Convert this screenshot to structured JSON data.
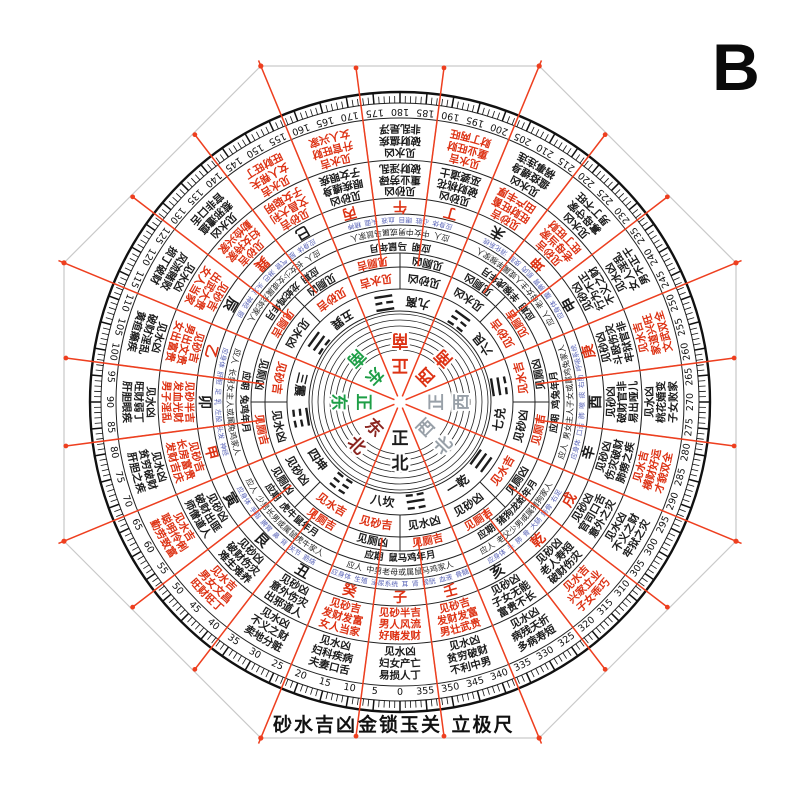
{
  "badge": "B",
  "footer": {
    "labels": [
      "砂水吉凶",
      "金锁玉关",
      "立极尺"
    ]
  },
  "palette": {
    "red": "#dd3214",
    "black": "#1c1c1c",
    "green": "#1d9e46",
    "maroon": "#8b2520",
    "gray": "#98a0a8",
    "blue": "#5a65b8",
    "line": "#222222",
    "ray": "#ee3f1f",
    "octagon": "#c9c9c9"
  },
  "center_directions": [
    {
      "label": "正北",
      "angle": 0,
      "color": "black"
    },
    {
      "label": "东北",
      "angle": 45,
      "color": "maroon"
    },
    {
      "label": "正东",
      "angle": 90,
      "color": "green"
    },
    {
      "label": "东南",
      "angle": 135,
      "color": "green"
    },
    {
      "label": "正南",
      "angle": 180,
      "color": "red"
    },
    {
      "label": "西南",
      "angle": 225,
      "color": "red"
    },
    {
      "label": "正西",
      "angle": 270,
      "color": "gray"
    },
    {
      "label": "西北",
      "angle": 315,
      "color": "gray"
    }
  ],
  "trigram_ring": [
    {
      "label": "八坎",
      "angle": 0,
      "lines": [
        0,
        1,
        0
      ]
    },
    {
      "label": "四坤",
      "angle": 45,
      "lines": [
        0,
        0,
        0
      ]
    },
    {
      "label": "三震",
      "angle": 90,
      "lines": [
        1,
        0,
        0
      ]
    },
    {
      "label": "五巽",
      "angle": 135,
      "lines": [
        0,
        1,
        1
      ]
    },
    {
      "label": "九离",
      "angle": 180,
      "lines": [
        1,
        0,
        1
      ]
    },
    {
      "label": "六艮",
      "angle": 225,
      "lines": [
        0,
        0,
        1
      ]
    },
    {
      "label": "七兑",
      "angle": 270,
      "lines": [
        1,
        1,
        0
      ]
    },
    {
      "label": "一乾",
      "angle": 315,
      "lines": [
        1,
        1,
        1
      ]
    }
  ],
  "verdict_ring": [
    {
      "text": "见砂吉",
      "angle": 11.25,
      "color": "red"
    },
    {
      "text": "见水凶",
      "angle": -11.25,
      "color": "black"
    },
    {
      "text": "见砂凶",
      "angle": 56.25,
      "color": "black"
    },
    {
      "text": "见水吉",
      "angle": 33.75,
      "color": "red"
    },
    {
      "text": "见砂吉",
      "angle": 101.25,
      "color": "red"
    },
    {
      "text": "见水凶",
      "angle": 78.75,
      "color": "black"
    },
    {
      "text": "见砂吉",
      "angle": 146.25,
      "color": "red"
    },
    {
      "text": "见水凶",
      "angle": 123.75,
      "color": "black"
    },
    {
      "text": "见砂凶",
      "angle": 191.25,
      "color": "black"
    },
    {
      "text": "见水吉",
      "angle": 168.75,
      "color": "red"
    },
    {
      "text": "见砂吉",
      "angle": 236.25,
      "color": "red"
    },
    {
      "text": "见水凶",
      "angle": 213.75,
      "color": "black"
    },
    {
      "text": "见砂凶",
      "angle": 281.25,
      "color": "black"
    },
    {
      "text": "见水吉",
      "angle": 258.75,
      "color": "red"
    },
    {
      "text": "见砂凶",
      "angle": 326.25,
      "color": "black"
    },
    {
      "text": "见水吉",
      "angle": 303.75,
      "color": "red"
    }
  ],
  "toilet_ring": [
    {
      "text": "见厕凶",
      "angle": 11.25,
      "color": "black"
    },
    {
      "text": "见厕吉",
      "angle": -11.25,
      "color": "red"
    },
    {
      "text": "见厕凶",
      "angle": 56.25,
      "color": "black"
    },
    {
      "text": "见厕吉",
      "angle": 33.75,
      "color": "red"
    },
    {
      "text": "见厕凶",
      "angle": 101.25,
      "color": "black"
    },
    {
      "text": "见厕吉",
      "angle": 78.75,
      "color": "red"
    },
    {
      "text": "见厕凶",
      "angle": 146.25,
      "color": "black"
    },
    {
      "text": "见厕吉",
      "angle": 123.75,
      "color": "red"
    },
    {
      "text": "见厕凶",
      "angle": 191.25,
      "color": "black"
    },
    {
      "text": "见厕吉",
      "angle": 168.75,
      "color": "red"
    },
    {
      "text": "见厕吉",
      "angle": 236.25,
      "color": "red"
    },
    {
      "text": "见厕凶",
      "angle": 213.75,
      "color": "black"
    },
    {
      "text": "见厕吉",
      "angle": 281.25,
      "color": "red"
    },
    {
      "text": "见厕凶",
      "angle": 258.75,
      "color": "black"
    },
    {
      "text": "见厕吉",
      "angle": 326.25,
      "color": "red"
    },
    {
      "text": "见厕凶",
      "angle": 303.75,
      "color": "black"
    }
  ],
  "period_ring": [
    {
      "text": "应期 鼠马鸡年月",
      "angle": 0
    },
    {
      "text": "应期 虎牛鼠年月",
      "angle": 45
    },
    {
      "text": "应期 兔鸡年月",
      "angle": 90
    },
    {
      "text": "应期 龙蛇鸡年月",
      "angle": 135
    },
    {
      "text": "应期 马鼠年月",
      "angle": 180
    },
    {
      "text": "应期 羊猴虎年月",
      "angle": 225
    },
    {
      "text": "应期 鸡兔年月",
      "angle": 270
    },
    {
      "text": "应期 猪狗龙蛇年月",
      "angle": 315
    }
  ],
  "people_ring": [
    {
      "text": "应人 中男老母或属鼠马鸡家人",
      "angle": 0
    },
    {
      "text": "应人 少男长男或属鼠虎牛家人",
      "angle": 45
    },
    {
      "text": "应人 长男女主人或属兔鸡家人",
      "angle": 90
    },
    {
      "text": "应人 长女少女或属龙蛇家人",
      "angle": 135
    },
    {
      "text": "应人 中女中男或属马鼠家人",
      "angle": 180
    },
    {
      "text": "应人 老母女主人或属羊猴家人",
      "angle": 225
    },
    {
      "text": "应人 男女主人子女或属鸡兔家人",
      "angle": 270
    },
    {
      "text": "应人 老父少男或属猪狗家人",
      "angle": 315
    }
  ],
  "body_ring": [
    {
      "text": "应身体 生殖 泌尿系统 耳 肾 膀胱 血液 骨髓",
      "angle": 0
    },
    {
      "text": "应身体 手指 脾胃 鼻 背 关节 筋络",
      "angle": 45
    },
    {
      "text": "应身体 肝胆 足 乳 左股 头发 神经",
      "angle": 90
    },
    {
      "text": "应身体 股 气管 淋巴 头发 神经 胆",
      "angle": 135
    },
    {
      "text": "应身体 心脏 眼目 血液 头面 精神",
      "angle": 180
    },
    {
      "text": "应身体 腹 脾胃 肌肉 皮肤 消化系统",
      "angle": 225
    },
    {
      "text": "应身体 口舌 肺 喉 痰 右肋 呼吸系统",
      "angle": 270
    },
    {
      "text": "应身体 头 肺 骨 大肠 筋骨 右足",
      "angle": 315
    }
  ],
  "mountains": [
    {
      "name": "子",
      "angle": 0,
      "color": "red"
    },
    {
      "name": "癸",
      "angle": 15,
      "color": "red"
    },
    {
      "name": "丑",
      "angle": 30,
      "color": "black"
    },
    {
      "name": "艮",
      "angle": 45,
      "color": "black"
    },
    {
      "name": "寅",
      "angle": 60,
      "color": "black"
    },
    {
      "name": "甲",
      "angle": 75,
      "color": "red"
    },
    {
      "name": "卯",
      "angle": 90,
      "color": "black"
    },
    {
      "name": "乙",
      "angle": 105,
      "color": "red"
    },
    {
      "name": "辰",
      "angle": 120,
      "color": "black"
    },
    {
      "name": "巽",
      "angle": 135,
      "color": "red"
    },
    {
      "name": "巳",
      "angle": 150,
      "color": "black"
    },
    {
      "name": "丙",
      "angle": 165,
      "color": "red"
    },
    {
      "name": "午",
      "angle": 180,
      "color": "red"
    },
    {
      "name": "丁",
      "angle": 195,
      "color": "red"
    },
    {
      "name": "未",
      "angle": 210,
      "color": "black"
    },
    {
      "name": "坤",
      "angle": 225,
      "color": "red"
    },
    {
      "name": "申",
      "angle": 240,
      "color": "black"
    },
    {
      "name": "庚",
      "angle": 255,
      "color": "red"
    },
    {
      "name": "酉",
      "angle": 270,
      "color": "black"
    },
    {
      "name": "辛",
      "angle": 285,
      "color": "black"
    },
    {
      "name": "戌",
      "angle": 300,
      "color": "red"
    },
    {
      "name": "乾",
      "angle": 315,
      "color": "red"
    },
    {
      "name": "亥",
      "angle": 330,
      "color": "black"
    },
    {
      "name": "壬",
      "angle": 345,
      "color": "red"
    }
  ],
  "sand_ring": [
    {
      "angle": 0,
      "color": "red",
      "lines": [
        "见砂半吉",
        "男人风流",
        "好赌发财"
      ]
    },
    {
      "angle": 15,
      "color": "red",
      "lines": [
        "见砂吉",
        "发财发富",
        "女人当家"
      ]
    },
    {
      "angle": 30,
      "color": "black",
      "lines": [
        "见砂凶",
        "意外伤灾",
        "出邪道人"
      ]
    },
    {
      "angle": 45,
      "color": "black",
      "lines": [
        "见砂凶",
        "破财伤灾",
        "难生难养"
      ]
    },
    {
      "angle": 60,
      "color": "black",
      "lines": [
        "见砂凶",
        "破财出匪",
        "师僧道人"
      ]
    },
    {
      "angle": 75,
      "color": "red",
      "lines": [
        "见砂吉",
        "长房富贵",
        "发财吉庆"
      ]
    },
    {
      "angle": 90,
      "color": "red",
      "lines": [
        "见砂半吉",
        "发血光财",
        "男子淫乱"
      ]
    },
    {
      "angle": 105,
      "color": "red",
      "lines": [
        "见砂吉",
        "男出文贵",
        "女出富贵"
      ]
    },
    {
      "angle": 120,
      "color": "red",
      "lines": [
        "见砂吉",
        "出武大贵",
        "女人当家"
      ]
    },
    {
      "angle": 135,
      "color": "red",
      "lines": [
        "见砂吉",
        "妇女持家",
        "勤俭兴家"
      ]
    },
    {
      "angle": 150,
      "color": "red",
      "lines": [
        "见砂吉",
        "文昌大利",
        "子女聪明"
      ]
    },
    {
      "angle": 165,
      "color": "black",
      "lines": [
        "见砂凶",
        "眼疾缠身",
        "子女眼疾"
      ]
    },
    {
      "angle": 180,
      "color": "black",
      "lines": [
        "见砂凶",
        "重业劳碌",
        "破财淫乱"
      ]
    },
    {
      "angle": 195,
      "color": "black",
      "lines": [
        "见砂凶",
        "破财桃花",
        "巫婆道士"
      ]
    },
    {
      "angle": 210,
      "color": "red",
      "lines": [
        "见砂吉",
        "旺财旺畜",
        "田产丰厚"
      ]
    },
    {
      "angle": 225,
      "color": "red",
      "lines": [
        "见砂吉",
        "老母当家",
        "旺丁旺财"
      ]
    },
    {
      "angle": 240,
      "color": "black",
      "lines": [
        "见砂凶",
        "行为不正",
        "不义之财"
      ]
    },
    {
      "angle": 255,
      "color": "black",
      "lines": [
        "见砂凶",
        "斗殴伤灾",
        "牢狱官非"
      ]
    },
    {
      "angle": 270,
      "color": "black",
      "lines": [
        "见砂凶",
        "破财官非",
        "易出哑儿"
      ]
    },
    {
      "angle": 285,
      "color": "black",
      "lines": [
        "见砂凶",
        "伤灾破财",
        "肺痨之疾"
      ]
    },
    {
      "angle": 300,
      "color": "black",
      "lines": [
        "见砂凶",
        "官司口舌",
        "意外之灾"
      ]
    },
    {
      "angle": 315,
      "color": "black",
      "lines": [
        "见砂凶",
        "老人寿短",
        "破财伤灾"
      ]
    },
    {
      "angle": 330,
      "color": "black",
      "lines": [
        "见砂凶",
        "子女无能",
        "富贵不长"
      ]
    },
    {
      "angle": 345,
      "color": "red",
      "lines": [
        "见砂吉",
        "发财发富",
        "男壮武贵"
      ]
    }
  ],
  "water_ring": [
    {
      "angle": 0,
      "color": "black",
      "lines": [
        "见水凶",
        "妇女产亡",
        "易损人丁"
      ]
    },
    {
      "angle": 15,
      "color": "black",
      "lines": [
        "见水凶",
        "妇科疾病",
        "夫妻口舌"
      ]
    },
    {
      "angle": 30,
      "color": "black",
      "lines": [
        "见水凶",
        "不义之财",
        "卖地分赃"
      ]
    },
    {
      "angle": 45,
      "color": "red",
      "lines": [
        "见水吉",
        "男女文昌",
        "旺财旺丁"
      ]
    },
    {
      "angle": 60,
      "color": "red",
      "lines": [
        "见水吉",
        "聪明伶俐",
        "勤劳致富"
      ]
    },
    {
      "angle": 75,
      "color": "black",
      "lines": [
        "见水凶",
        "贫穷破财",
        "肝胆之疾"
      ]
    },
    {
      "angle": 90,
      "color": "black",
      "lines": [
        "见水凶",
        "旺财弱丁",
        "肝胆眼疾"
      ]
    },
    {
      "angle": 105,
      "color": "black",
      "lines": [
        "见水凶",
        "破财淫乱",
        "黄疸癞疾"
      ]
    },
    {
      "angle": 120,
      "color": "black",
      "lines": [
        "见水凶",
        "风流赌败",
        "损丁破财"
      ]
    },
    {
      "angle": 135,
      "color": "black",
      "lines": [
        "见水凶",
        "惹邪遭瘟",
        "官非口舌"
      ]
    },
    {
      "angle": 150,
      "color": "red",
      "lines": [
        "见水吉",
        "女人帮夫",
        "旺财旺丁"
      ]
    },
    {
      "angle": 165,
      "color": "red",
      "lines": [
        "见水吉",
        "升官旺财",
        "女人兴家"
      ]
    },
    {
      "angle": 180,
      "color": "black",
      "lines": [
        "见水凶",
        "破财瘟疾",
        "非乱是浮"
      ]
    },
    {
      "angle": 195,
      "color": "red",
      "lines": [
        "见水吉",
        "重业旺财",
        "财丁两旺"
      ]
    },
    {
      "angle": 210,
      "color": "black",
      "lines": [
        "见水凶",
        "瘟疫缠身",
        "祸事连连"
      ]
    },
    {
      "angle": 225,
      "color": "black",
      "lines": [
        "见水凶",
        "寡母守家",
        "男丁不旺"
      ]
    },
    {
      "angle": 240,
      "color": "black",
      "lines": [
        "见水凶",
        "女人淫乱",
        "男不正干"
      ]
    },
    {
      "angle": 255,
      "color": "red",
      "lines": [
        "见水吉",
        "家道兴旺",
        "文武双全"
      ]
    },
    {
      "angle": 270,
      "color": "black",
      "lines": [
        "见水凶",
        "桃花婚变",
        "子女败家"
      ]
    },
    {
      "angle": 285,
      "color": "red",
      "lines": [
        "见水吉",
        "横财好运",
        "才貌双全"
      ]
    },
    {
      "angle": 300,
      "color": "black",
      "lines": [
        "见水凶",
        "不义之财",
        "牢狱之灾"
      ]
    },
    {
      "angle": 315,
      "color": "red",
      "lines": [
        "见水吉",
        "兴家立业",
        "子女乖巧"
      ]
    },
    {
      "angle": 330,
      "color": "black",
      "lines": [
        "见水凶",
        "病残夭折",
        "多病寿短"
      ]
    },
    {
      "angle": 345,
      "color": "black",
      "lines": [
        "见水凶",
        "贫穷破财",
        "不利中男"
      ]
    }
  ],
  "degree_ring": {
    "start": 0,
    "step": 5,
    "count": 72
  }
}
